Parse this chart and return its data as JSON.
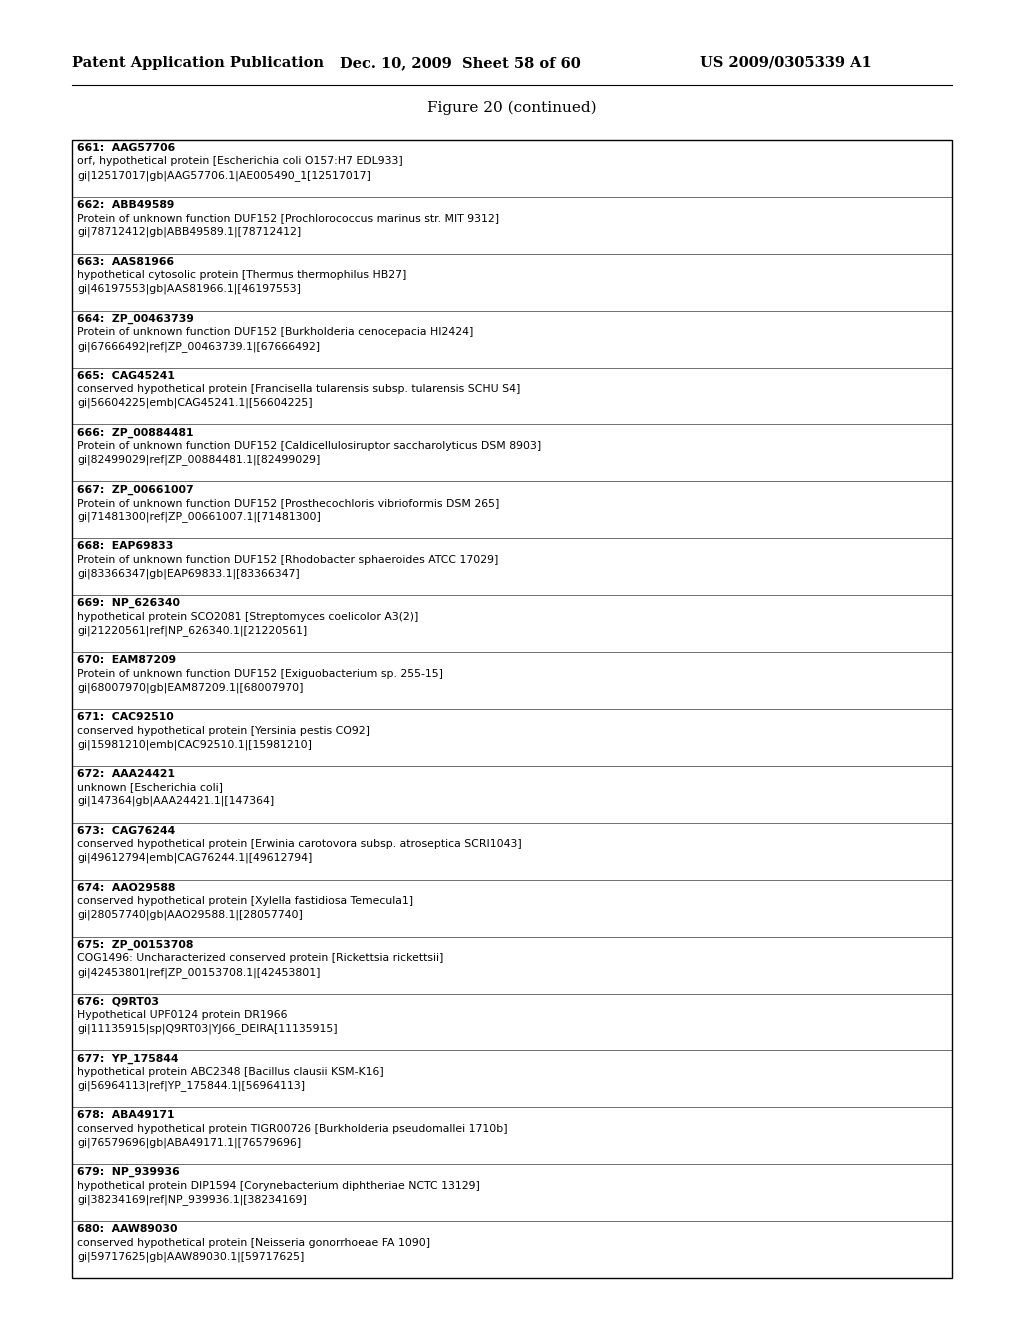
{
  "header_left": "Patent Application Publication",
  "header_mid": "Dec. 10, 2009  Sheet 58 of 60",
  "header_right": "US 2009/0305339 A1",
  "figure_title": "Figure 20 (continued)",
  "entries": [
    {
      "num": "661:  AAG57706",
      "line2": "orf, hypothetical protein [Escherichia coli O157:H7 EDL933]",
      "line3": "gi|12517017|gb|AAG57706.1|AE005490_1[12517017]"
    },
    {
      "num": "662:  ABB49589",
      "line2": "Protein of unknown function DUF152 [Prochlorococcus marinus str. MIT 9312]",
      "line3": "gi|78712412|gb|ABB49589.1|[78712412]"
    },
    {
      "num": "663:  AAS81966",
      "line2": "hypothetical cytosolic protein [Thermus thermophilus HB27]",
      "line3": "gi|46197553|gb|AAS81966.1|[46197553]"
    },
    {
      "num": "664:  ZP_00463739",
      "line2": "Protein of unknown function DUF152 [Burkholderia cenocepacia HI2424]",
      "line3": "gi|67666492|ref|ZP_00463739.1|[67666492]"
    },
    {
      "num": "665:  CAG45241",
      "line2": "conserved hypothetical protein [Francisella tularensis subsp. tularensis SCHU S4]",
      "line3": "gi|56604225|emb|CAG45241.1|[56604225]"
    },
    {
      "num": "666:  ZP_00884481",
      "line2": "Protein of unknown function DUF152 [Caldicellulosiruptor saccharolyticus DSM 8903]",
      "line3": "gi|82499029|ref|ZP_00884481.1|[82499029]"
    },
    {
      "num": "667:  ZP_00661007",
      "line2": "Protein of unknown function DUF152 [Prosthecochloris vibrioformis DSM 265]",
      "line3": "gi|71481300|ref|ZP_00661007.1|[71481300]"
    },
    {
      "num": "668:  EAP69833",
      "line2": "Protein of unknown function DUF152 [Rhodobacter sphaeroides ATCC 17029]",
      "line3": "gi|83366347|gb|EAP69833.1|[83366347]"
    },
    {
      "num": "669:  NP_626340",
      "line2": "hypothetical protein SCO2081 [Streptomyces coelicolor A3(2)]",
      "line3": "gi|21220561|ref|NP_626340.1|[21220561]"
    },
    {
      "num": "670:  EAM87209",
      "line2": "Protein of unknown function DUF152 [Exiguobacterium sp. 255-15]",
      "line3": "gi|68007970|gb|EAM87209.1|[68007970]"
    },
    {
      "num": "671:  CAC92510",
      "line2": "conserved hypothetical protein [Yersinia pestis CO92]",
      "line3": "gi|15981210|emb|CAC92510.1|[15981210]"
    },
    {
      "num": "672:  AAA24421",
      "line2": "unknown [Escherichia coli]",
      "line3": "gi|147364|gb|AAA24421.1|[147364]"
    },
    {
      "num": "673:  CAG76244",
      "line2": "conserved hypothetical protein [Erwinia carotovora subsp. atroseptica SCRI1043]",
      "line3": "gi|49612794|emb|CAG76244.1|[49612794]"
    },
    {
      "num": "674:  AAO29588",
      "line2": "conserved hypothetical protein [Xylella fastidiosa Temecula1]",
      "line3": "gi|28057740|gb|AAO29588.1|[28057740]"
    },
    {
      "num": "675:  ZP_00153708",
      "line2": "COG1496: Uncharacterized conserved protein [Rickettsia rickettsii]",
      "line3": "gi|42453801|ref|ZP_00153708.1|[42453801]"
    },
    {
      "num": "676:  Q9RT03",
      "line2": "Hypothetical UPF0124 protein DR1966",
      "line3": "gi|11135915|sp|Q9RT03|YJ66_DEIRA[11135915]"
    },
    {
      "num": "677:  YP_175844",
      "line2": "hypothetical protein ABC2348 [Bacillus clausii KSM-K16]",
      "line3": "gi|56964113|ref|YP_175844.1|[56964113]"
    },
    {
      "num": "678:  ABA49171",
      "line2": "conserved hypothetical protein TIGR00726 [Burkholderia pseudomallei 1710b]",
      "line3": "gi|76579696|gb|ABA49171.1|[76579696]"
    },
    {
      "num": "679:  NP_939936",
      "line2": "hypothetical protein DIP1594 [Corynebacterium diphtheriae NCTC 13129]",
      "line3": "gi|38234169|ref|NP_939936.1|[38234169]"
    },
    {
      "num": "680:  AAW89030",
      "line2": "conserved hypothetical protein [Neisseria gonorrhoeae FA 1090]",
      "line3": "gi|59717625|gb|AAW89030.1|[59717625]"
    }
  ],
  "bg_color": "#ffffff",
  "text_color": "#000000",
  "border_color": "#000000",
  "font_size_header": 10.5,
  "font_size_title": 11,
  "font_size_entry": 7.8
}
